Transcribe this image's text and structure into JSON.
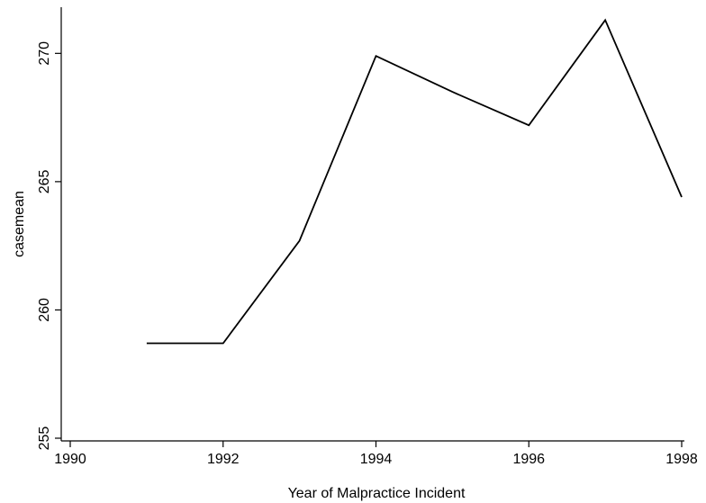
{
  "chart_data": {
    "type": "line",
    "title": "",
    "xlabel": "Year of Malpractice Incident",
    "ylabel": "casemean",
    "xlim": [
      1990,
      1998
    ],
    "ylim": [
      255,
      271.8
    ],
    "x_ticks": [
      1990,
      1992,
      1994,
      1996,
      1998
    ],
    "x_tick_labels": [
      "1990",
      "1992",
      "1994",
      "1996",
      "1998"
    ],
    "y_ticks": [
      255,
      260,
      265,
      270
    ],
    "y_tick_labels": [
      "255",
      "260",
      "265",
      "270"
    ],
    "grid": false,
    "line_color": "#000000",
    "series": [
      {
        "x": [
          1991,
          1992,
          1993,
          1994,
          1995,
          1996,
          1997,
          1998
        ],
        "values": [
          258.7,
          258.7,
          262.7,
          269.9,
          268.5,
          267.2,
          271.3,
          264.4
        ]
      }
    ]
  }
}
